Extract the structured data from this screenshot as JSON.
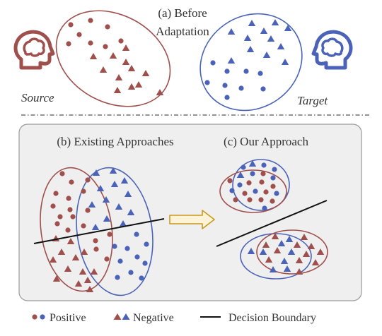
{
  "panel_a": {
    "title_line1": "(a) Before",
    "title_line2": "Adaptation",
    "source_label": "Source",
    "target_label": "Target"
  },
  "panel_b": {
    "title": "(b) Existing Approaches"
  },
  "panel_c": {
    "title": "(c) Our Approach"
  },
  "legend": {
    "positive": "Positive",
    "negative": "Negative",
    "boundary": "Decision Boundary"
  },
  "colors": {
    "source": "#a0504c",
    "target": "#4a63b8",
    "arrow_fill": "#fdf3d8",
    "arrow_stroke": "#c99a1e",
    "panel_bg": "#efefef",
    "panel_border": "#9a9a9a",
    "head_icon": "brain-head-icon"
  }
}
